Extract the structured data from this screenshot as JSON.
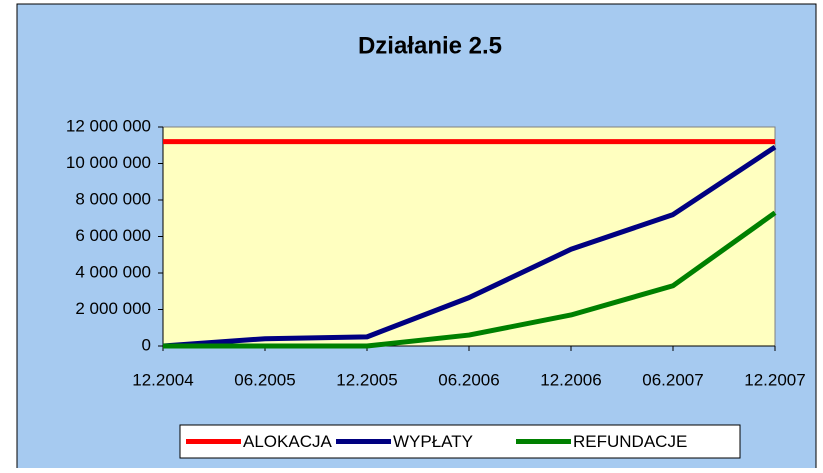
{
  "chart_data": {
    "type": "line",
    "title": "Działanie 2.5",
    "categories": [
      "12.2004",
      "06.2005",
      "12.2005",
      "06.2006",
      "12.2006",
      "06.2007",
      "12.2007"
    ],
    "series": [
      {
        "name": "ALOKACJA",
        "color": "#ff0000",
        "values": [
          11200000,
          11200000,
          11200000,
          11200000,
          11200000,
          11200000,
          11200000
        ]
      },
      {
        "name": "WYPŁATY",
        "color": "#000080",
        "values": [
          0,
          400000,
          500000,
          2650000,
          5300000,
          7200000,
          10900000
        ]
      },
      {
        "name": "REFUNDACJE",
        "color": "#008000",
        "values": [
          0,
          0,
          0,
          600000,
          1700000,
          3300000,
          7300000
        ]
      }
    ],
    "ylim": [
      0,
      12000000
    ],
    "yticks": [
      0,
      {
        "value": 2000000,
        "label": "2 000 000"
      },
      {
        "value": 4000000,
        "label": "4 000 000"
      },
      {
        "value": 6000000,
        "label": "6 000 000"
      },
      {
        "value": 8000000,
        "label": "8 000 000"
      },
      {
        "value": 10000000,
        "label": "10 000 000"
      },
      {
        "value": 12000000,
        "label": "12 000 000"
      }
    ],
    "grid": false,
    "legend": "bottom"
  }
}
